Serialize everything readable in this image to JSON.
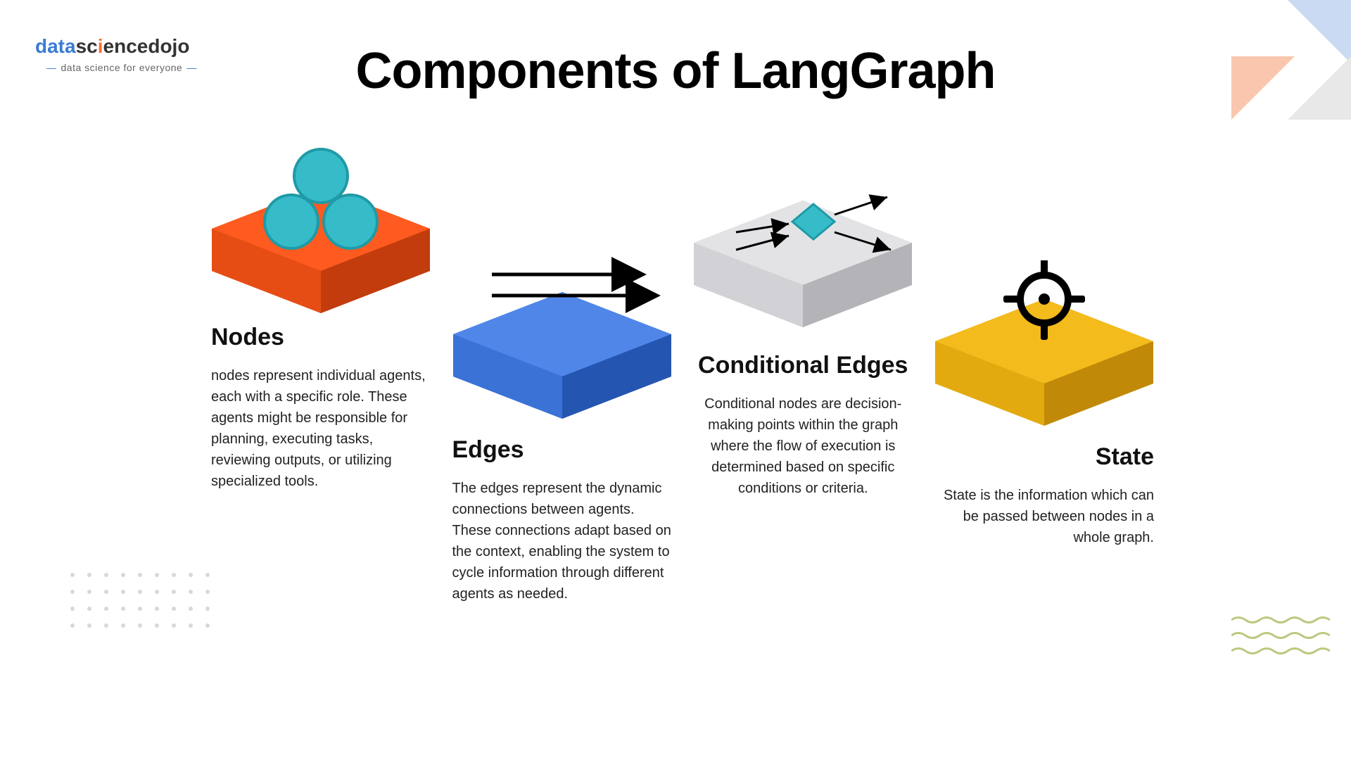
{
  "logo": {
    "text_data": "data",
    "text_sci": "sc",
    "text_i": "i",
    "text_ence": "ence",
    "text_dojo": "dojo",
    "tagline": "data science for everyone"
  },
  "title": "Components of LangGraph",
  "colors": {
    "orange": "#ff5a1f",
    "orange_dark": "#d94410",
    "blue": "#4f86e8",
    "blue_dark": "#2b63c9",
    "gray": "#e3e3e6",
    "gray_dark": "#c0c0c5",
    "yellow": "#f3bb1c",
    "yellow_dark": "#d39a0a",
    "teal": "#36bcc9",
    "teal_dark": "#1f9aa6",
    "wave": "#b9c97f",
    "tri_blue": "#c9daf2",
    "tri_peach": "#f9c7ad",
    "tri_gray": "#e8e8e8"
  },
  "columns": {
    "nodes": {
      "heading": "Nodes",
      "body": "nodes represent individual agents, each with a specific role. These agents might be responsible for planning, executing tasks, reviewing outputs, or utilizing specialized tools."
    },
    "edges": {
      "heading": "Edges",
      "body": "The edges represent the dynamic connections between agents. These connections adapt based on the context, enabling the system to cycle information through different agents as needed."
    },
    "conditional": {
      "heading": "Conditional Edges",
      "body": "Conditional nodes are decision-making points within the graph where the flow of execution is determined based on specific conditions or criteria."
    },
    "state": {
      "heading": "State",
      "body": "State is the information which can be passed between nodes in a whole graph."
    }
  },
  "geometry": {
    "platform_width": 310,
    "platform_height": 190
  }
}
